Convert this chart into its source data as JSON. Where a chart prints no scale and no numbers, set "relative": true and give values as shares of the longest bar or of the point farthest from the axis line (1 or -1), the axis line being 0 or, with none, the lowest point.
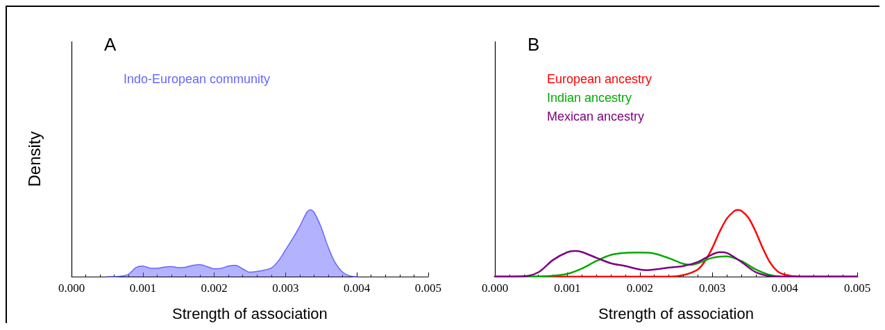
{
  "chart_data": [
    {
      "type": "area",
      "title": "A",
      "xlabel": "Strength of association",
      "ylabel": "Density",
      "relative": true,
      "legend": "top left",
      "marker": "none",
      "xlim": [
        0,
        0.005
      ],
      "xticks": [
        {
          "value": 0,
          "label": "0.000"
        },
        {
          "value": 0.001,
          "label": "0.001"
        },
        {
          "value": 0.002,
          "label": "0.002"
        },
        {
          "value": 0.003,
          "label": "0.003"
        },
        {
          "value": 0.004,
          "label": "0.004"
        },
        {
          "value": 0.005,
          "label": "0.005"
        }
      ],
      "grid": false,
      "series": [
        {
          "name": "Indo-European community",
          "color": "#6666ff",
          "x": [
            0.0005,
            0.0006,
            0.0007,
            0.0008,
            0.0009,
            0.001,
            0.0011,
            0.0012,
            0.0013,
            0.0014,
            0.0015,
            0.0016,
            0.0017,
            0.0018,
            0.0019,
            0.002,
            0.0021,
            0.0022,
            0.0023,
            0.0024,
            0.0025,
            0.0026,
            0.0027,
            0.0028,
            0.0029,
            0.003,
            0.0031,
            0.0032,
            0.0033,
            0.00335,
            0.0034,
            0.0035,
            0.0036,
            0.0037,
            0.0038,
            0.0039,
            0.004
          ],
          "values": [
            0,
            0,
            0.007,
            0.034,
            0.134,
            0.158,
            0.128,
            0.124,
            0.144,
            0.151,
            0.134,
            0.141,
            0.168,
            0.178,
            0.151,
            0.117,
            0.124,
            0.158,
            0.168,
            0.117,
            0.067,
            0.077,
            0.097,
            0.128,
            0.235,
            0.4,
            0.57,
            0.755,
            0.963,
            1,
            0.963,
            0.738,
            0.436,
            0.201,
            0.067,
            0.01,
            0
          ]
        }
      ]
    },
    {
      "type": "line",
      "title": "B",
      "xlabel": "Strength of association",
      "relative": true,
      "legend": "top left",
      "marker": "none",
      "xlim": [
        0,
        0.005
      ],
      "xticks": [
        {
          "value": 0,
          "label": "0.000"
        },
        {
          "value": 0.001,
          "label": "0.001"
        },
        {
          "value": 0.002,
          "label": "0.002"
        },
        {
          "value": 0.003,
          "label": "0.003"
        },
        {
          "value": 0.004,
          "label": "0.004"
        },
        {
          "value": 0.005,
          "label": "0.005"
        }
      ],
      "grid": false,
      "series": [
        {
          "name": "European ancestry",
          "color": "#ff0000",
          "x": [
            0,
            0.0024,
            0.0026,
            0.0028,
            0.0029,
            0.003,
            0.0031,
            0.0032,
            0.0033,
            0.00335,
            0.0034,
            0.0035,
            0.0036,
            0.0037,
            0.0038,
            0.0039,
            0.004,
            0.0042,
            0.005
          ],
          "values": [
            0,
            0,
            0.023,
            0.107,
            0.234,
            0.43,
            0.67,
            0.868,
            0.98,
            1,
            0.986,
            0.88,
            0.67,
            0.417,
            0.206,
            0.079,
            0.028,
            0,
            0
          ]
        },
        {
          "name": "Indian ancestry",
          "color": "#00aa00",
          "x": [
            0,
            0.0006,
            0.0008,
            0.001,
            0.0012,
            0.0014,
            0.0016,
            0.0018,
            0.002,
            0.0022,
            0.0024,
            0.0026,
            0.0027,
            0.0028,
            0.003,
            0.0032,
            0.0034,
            0.0036,
            0.0038,
            0.004,
            0.005
          ],
          "values": [
            0,
            0.003,
            0.014,
            0.042,
            0.121,
            0.234,
            0.324,
            0.355,
            0.36,
            0.346,
            0.276,
            0.192,
            0.177,
            0.2,
            0.282,
            0.304,
            0.234,
            0.107,
            0.023,
            0,
            0
          ]
        },
        {
          "name": "Mexican ancestry",
          "color": "#800080",
          "x": [
            0,
            0.0004,
            0.0006,
            0.0008,
            0.001,
            0.0011,
            0.0012,
            0.0014,
            0.0016,
            0.0018,
            0.002,
            0.0021,
            0.0022,
            0.0024,
            0.0026,
            0.0028,
            0.003,
            0.0031,
            0.0032,
            0.0034,
            0.0036,
            0.0038,
            0.004,
            0.005
          ],
          "values": [
            0,
            0.006,
            0.065,
            0.248,
            0.366,
            0.383,
            0.369,
            0.282,
            0.2,
            0.158,
            0.107,
            0.096,
            0.107,
            0.135,
            0.158,
            0.22,
            0.332,
            0.366,
            0.355,
            0.22,
            0.065,
            0.008,
            0,
            0
          ]
        }
      ]
    }
  ]
}
